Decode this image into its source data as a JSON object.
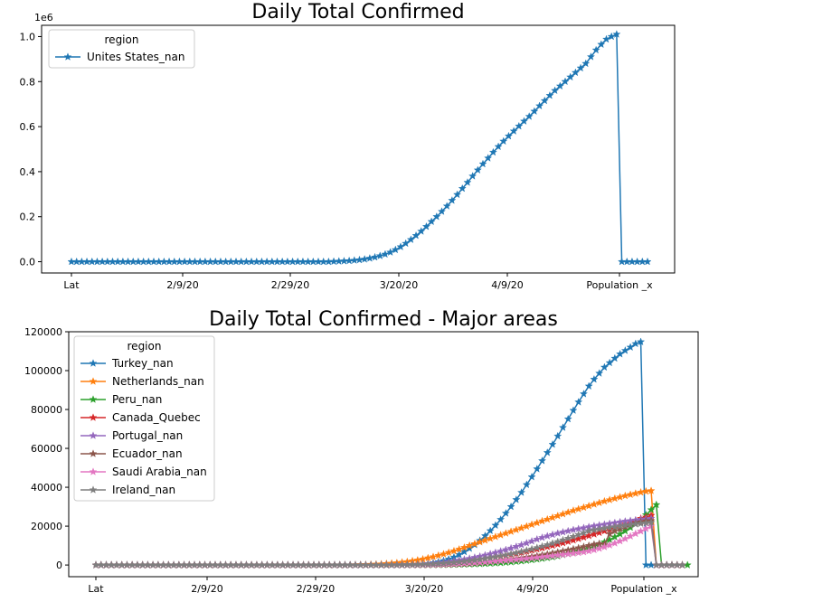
{
  "chart_data": [
    {
      "type": "line",
      "title": "Daily Total Confirmed",
      "xlabel": "",
      "ylabel": "",
      "x_tick_labels": [
        "Lat",
        "2/9/20",
        "2/29/20",
        "3/20/20",
        "4/9/20",
        "Population _x"
      ],
      "y_ticks": [
        "0.0",
        "0.2",
        "0.4",
        "0.6",
        "0.8",
        "1.0"
      ],
      "y_offset_label": "1e6",
      "ylim": [
        -0.05,
        1.05
      ],
      "legend": {
        "title": "region",
        "placement": "upper left"
      },
      "grid": false,
      "series": [
        {
          "name": "Unites States_nan",
          "color": "#1f77b4",
          "marker": "star",
          "values": [
            0,
            0,
            0,
            0,
            0,
            0,
            0,
            0,
            0,
            0,
            0,
            0,
            0,
            0,
            0,
            0,
            0,
            0,
            0,
            0,
            0,
            0,
            0,
            0,
            0,
            0,
            0,
            0,
            0,
            0,
            0,
            0,
            0,
            0,
            0,
            0,
            0,
            0,
            0,
            0,
            0,
            0,
            0,
            0,
            0,
            0,
            0,
            0,
            0,
            0,
            0,
            0.001,
            0.002,
            0.003,
            0.004,
            0.006,
            0.008,
            0.011,
            0.015,
            0.02,
            0.026,
            0.033,
            0.042,
            0.053,
            0.066,
            0.081,
            0.098,
            0.116,
            0.135,
            0.156,
            0.178,
            0.2,
            0.223,
            0.247,
            0.272,
            0.298,
            0.325,
            0.352,
            0.38,
            0.407,
            0.434,
            0.46,
            0.486,
            0.511,
            0.535,
            0.558,
            0.58,
            0.602,
            0.624,
            0.645,
            0.668,
            0.692,
            0.715,
            0.738,
            0.76,
            0.78,
            0.8,
            0.82,
            0.84,
            0.86,
            0.88,
            0.91,
            0.94,
            0.965,
            0.988,
            1.0,
            1.01,
            0,
            0,
            0,
            0,
            0,
            0
          ]
        }
      ]
    },
    {
      "type": "line",
      "title": "Daily Total Confirmed - Major areas",
      "xlabel": "",
      "ylabel": "",
      "x_tick_labels": [
        "Lat",
        "2/9/20",
        "2/29/20",
        "3/20/20",
        "4/9/20",
        "Population _x"
      ],
      "y_ticks": [
        "0",
        "20000",
        "40000",
        "60000",
        "80000",
        "100000",
        "120000"
      ],
      "ylim": [
        -6000,
        120000
      ],
      "legend": {
        "title": "region",
        "placement": "upper left"
      },
      "grid": false,
      "series": [
        {
          "name": "Turkey_nan",
          "color": "#1f77b4",
          "marker": "star",
          "values": [
            0,
            0,
            0,
            0,
            0,
            0,
            0,
            0,
            0,
            0,
            0,
            0,
            0,
            0,
            0,
            0,
            0,
            0,
            0,
            0,
            0,
            0,
            0,
            0,
            0,
            0,
            0,
            0,
            0,
            0,
            0,
            0,
            0,
            0,
            0,
            0,
            0,
            0,
            0,
            0,
            0,
            0,
            0,
            0,
            0,
            0,
            0,
            0,
            0,
            0,
            0,
            0,
            0,
            0,
            0,
            0,
            0,
            0,
            5,
            20,
            50,
            100,
            200,
            400,
            700,
            1100,
            1600,
            2200,
            3000,
            4000,
            5300,
            6800,
            8500,
            10400,
            12600,
            15000,
            17600,
            20400,
            23400,
            26600,
            30000,
            33600,
            37300,
            41300,
            45300,
            49400,
            53600,
            57800,
            62000,
            66300,
            70700,
            75100,
            79500,
            83800,
            88000,
            92000,
            95500,
            98600,
            101700,
            104000,
            106300,
            108500,
            110300,
            112000,
            113800,
            114800,
            0,
            0,
            0,
            0,
            0,
            0
          ]
        },
        {
          "name": "Netherlands_nan",
          "color": "#ff7f0e",
          "marker": "star",
          "values": [
            0,
            0,
            0,
            0,
            0,
            0,
            0,
            0,
            0,
            0,
            0,
            0,
            0,
            0,
            0,
            0,
            0,
            0,
            0,
            0,
            0,
            0,
            0,
            0,
            0,
            0,
            0,
            0,
            0,
            0,
            0,
            0,
            0,
            0,
            0,
            0,
            0,
            0,
            0,
            0,
            0,
            0,
            0,
            0,
            0,
            0,
            0,
            0,
            0,
            0,
            100,
            150,
            200,
            300,
            400,
            500,
            700,
            900,
            1100,
            1400,
            1700,
            2100,
            2500,
            3000,
            3600,
            4200,
            4900,
            5600,
            6400,
            7200,
            8100,
            9000,
            10000,
            10900,
            11800,
            12700,
            13600,
            14500,
            15400,
            16300,
            17200,
            18100,
            19000,
            19900,
            20800,
            21700,
            22600,
            23500,
            24400,
            25300,
            26200,
            27100,
            28000,
            28800,
            29600,
            30400,
            31200,
            32000,
            32800,
            33500,
            34200,
            34900,
            35600,
            36200,
            36800,
            37400,
            37900,
            38200,
            0,
            0,
            0,
            0,
            0,
            0
          ]
        },
        {
          "name": "Peru_nan",
          "color": "#2ca02c",
          "marker": "star",
          "values": [
            0,
            0,
            0,
            0,
            0,
            0,
            0,
            0,
            0,
            0,
            0,
            0,
            0,
            0,
            0,
            0,
            0,
            0,
            0,
            0,
            0,
            0,
            0,
            0,
            0,
            0,
            0,
            0,
            0,
            0,
            0,
            0,
            0,
            0,
            0,
            0,
            0,
            0,
            0,
            0,
            0,
            0,
            0,
            0,
            0,
            0,
            0,
            0,
            0,
            0,
            0,
            0,
            0,
            0,
            0,
            0,
            0,
            0,
            0,
            0,
            0,
            0,
            10,
            20,
            40,
            60,
            90,
            120,
            160,
            200,
            260,
            320,
            400,
            480,
            580,
            680,
            800,
            950,
            1100,
            1300,
            1500,
            1750,
            2000,
            2300,
            2600,
            2950,
            3300,
            3700,
            4100,
            4600,
            5200,
            5800,
            6500,
            7200,
            8000,
            8800,
            9700,
            10700,
            11800,
            13000,
            14400,
            15900,
            17500,
            19300,
            21300,
            23400,
            25800,
            28400,
            31000,
            0,
            0,
            0,
            0,
            0,
            0
          ]
        },
        {
          "name": "Canada_Quebec",
          "color": "#d62728",
          "marker": "star",
          "values": [
            0,
            0,
            0,
            0,
            0,
            0,
            0,
            0,
            0,
            0,
            0,
            0,
            0,
            0,
            0,
            0,
            0,
            0,
            0,
            0,
            0,
            0,
            0,
            0,
            0,
            0,
            0,
            0,
            0,
            0,
            0,
            0,
            0,
            0,
            0,
            0,
            0,
            0,
            0,
            0,
            0,
            0,
            0,
            0,
            0,
            0,
            0,
            0,
            0,
            0,
            0,
            0,
            0,
            0,
            0,
            0,
            0,
            0,
            10,
            20,
            40,
            80,
            130,
            200,
            300,
            430,
            580,
            760,
            980,
            1240,
            1520,
            1820,
            2140,
            2480,
            2840,
            3220,
            3620,
            4040,
            4480,
            4940,
            5420,
            5920,
            6440,
            6980,
            7540,
            8120,
            8720,
            9340,
            9980,
            10640,
            11320,
            12020,
            12740,
            13480,
            14240,
            15020,
            15820,
            16640,
            17480,
            18340,
            19220,
            20120,
            21040,
            21980,
            22940,
            23920,
            24600,
            25500,
            0,
            0,
            0,
            0,
            0,
            0
          ]
        },
        {
          "name": "Portugal_nan",
          "color": "#9467bd",
          "marker": "star",
          "values": [
            0,
            0,
            0,
            0,
            0,
            0,
            0,
            0,
            0,
            0,
            0,
            0,
            0,
            0,
            0,
            0,
            0,
            0,
            0,
            0,
            0,
            0,
            0,
            0,
            0,
            0,
            0,
            0,
            0,
            0,
            0,
            0,
            0,
            0,
            0,
            0,
            0,
            0,
            0,
            0,
            0,
            0,
            0,
            0,
            0,
            0,
            0,
            0,
            0,
            0,
            0,
            0,
            0,
            0,
            0,
            0,
            10,
            30,
            60,
            110,
            170,
            250,
            350,
            480,
            640,
            840,
            1080,
            1360,
            1680,
            2040,
            2440,
            2880,
            3360,
            3880,
            4440,
            5040,
            5680,
            6360,
            7080,
            7840,
            8640,
            9480,
            10360,
            11280,
            12240,
            13240,
            14100,
            14900,
            15600,
            16300,
            16900,
            17500,
            18100,
            18600,
            19100,
            19600,
            20100,
            20500,
            20900,
            21300,
            21700,
            22100,
            22500,
            22800,
            23100,
            23400,
            23700,
            24000,
            0,
            0,
            0,
            0,
            0,
            0
          ]
        },
        {
          "name": "Ecuador_nan",
          "color": "#8c564b",
          "marker": "star",
          "values": [
            0,
            0,
            0,
            0,
            0,
            0,
            0,
            0,
            0,
            0,
            0,
            0,
            0,
            0,
            0,
            0,
            0,
            0,
            0,
            0,
            0,
            0,
            0,
            0,
            0,
            0,
            0,
            0,
            0,
            0,
            0,
            0,
            0,
            0,
            0,
            0,
            0,
            0,
            0,
            0,
            0,
            0,
            0,
            0,
            0,
            0,
            0,
            0,
            0,
            0,
            0,
            0,
            0,
            0,
            0,
            0,
            0,
            0,
            0,
            0,
            0,
            10,
            20,
            40,
            70,
            110,
            160,
            220,
            300,
            400,
            520,
            660,
            820,
            1000,
            1200,
            1420,
            1660,
            1920,
            2200,
            2500,
            2820,
            3160,
            3520,
            3900,
            4300,
            4720,
            5160,
            5620,
            6100,
            6600,
            7120,
            7660,
            8220,
            8800,
            9400,
            10000,
            10600,
            11000,
            10700,
            16000,
            17500,
            18500,
            19500,
            20500,
            21500,
            22100,
            22700,
            22800,
            0,
            0,
            0,
            0,
            0,
            0
          ]
        },
        {
          "name": "Saudi Arabia_nan",
          "color": "#e377c2",
          "marker": "star",
          "values": [
            0,
            0,
            0,
            0,
            0,
            0,
            0,
            0,
            0,
            0,
            0,
            0,
            0,
            0,
            0,
            0,
            0,
            0,
            0,
            0,
            0,
            0,
            0,
            0,
            0,
            0,
            0,
            0,
            0,
            0,
            0,
            0,
            0,
            0,
            0,
            0,
            0,
            0,
            0,
            0,
            0,
            0,
            0,
            0,
            0,
            0,
            0,
            0,
            0,
            0,
            0,
            0,
            0,
            0,
            0,
            0,
            0,
            0,
            10,
            20,
            40,
            70,
            110,
            160,
            220,
            290,
            370,
            460,
            560,
            670,
            790,
            920,
            1060,
            1210,
            1370,
            1540,
            1720,
            1910,
            2110,
            2320,
            2540,
            2770,
            3010,
            3260,
            3520,
            3790,
            4070,
            4360,
            4660,
            4970,
            5290,
            5620,
            5960,
            6310,
            6700,
            7200,
            7800,
            8500,
            9300,
            10200,
            11200,
            12300,
            13500,
            14800,
            16100,
            17400,
            18700,
            20000,
            0,
            0,
            0,
            0,
            0,
            0
          ]
        },
        {
          "name": "Ireland_nan",
          "color": "#7f7f7f",
          "marker": "star",
          "values": [
            0,
            0,
            0,
            0,
            0,
            0,
            0,
            0,
            0,
            0,
            0,
            0,
            0,
            0,
            0,
            0,
            0,
            0,
            0,
            0,
            0,
            0,
            0,
            0,
            0,
            0,
            0,
            0,
            0,
            0,
            0,
            0,
            0,
            0,
            0,
            0,
            0,
            0,
            0,
            0,
            0,
            0,
            0,
            0,
            0,
            0,
            0,
            0,
            0,
            0,
            0,
            0,
            0,
            0,
            0,
            0,
            10,
            20,
            40,
            70,
            110,
            160,
            230,
            320,
            430,
            560,
            710,
            880,
            1070,
            1290,
            1540,
            1820,
            2130,
            2470,
            2840,
            3240,
            3670,
            4130,
            4620,
            5140,
            5690,
            6270,
            6880,
            7520,
            8190,
            8890,
            9620,
            10380,
            11170,
            11990,
            12840,
            13720,
            14630,
            15570,
            16540,
            17540,
            18000,
            18400,
            18800,
            19200,
            19600,
            20000,
            20400,
            20700,
            21000,
            21300,
            21600,
            21900,
            0,
            0,
            0,
            0,
            0,
            0
          ]
        }
      ]
    }
  ]
}
